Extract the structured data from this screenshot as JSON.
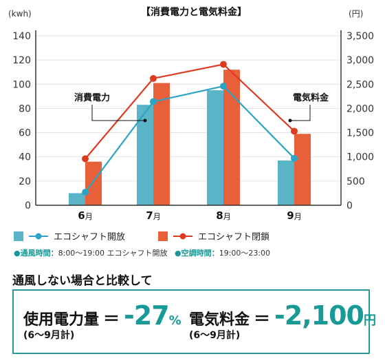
{
  "chart_data": {
    "type": "bar+line",
    "title": "【消費電力と電気料金】",
    "y_left_unit": "(kwh)",
    "y_right_unit": "(円)",
    "ylim_left": [
      0,
      140
    ],
    "ylim_right": [
      0,
      3500
    ],
    "left_ticks": [
      "0",
      "20",
      "40",
      "60",
      "80",
      "100",
      "120",
      "140"
    ],
    "right_ticks": [
      "0",
      "500",
      "1,000",
      "1,500",
      "2,000",
      "2,500",
      "3,000",
      "3,500"
    ],
    "categories": [
      {
        "num": "6",
        "suffix": "月"
      },
      {
        "num": "7",
        "suffix": "月"
      },
      {
        "num": "8",
        "suffix": "月"
      },
      {
        "num": "9",
        "suffix": "月"
      }
    ],
    "bars": [
      {
        "name": "エコシャフト開放",
        "color": "#5ab4c8",
        "values": [
          10,
          83,
          95,
          37
        ]
      },
      {
        "name": "エコシャフト閉鎖",
        "color": "#e8603a",
        "values": [
          36,
          101,
          112,
          59
        ]
      }
    ],
    "lines": [
      {
        "name": "エコシャフト開放",
        "color": "#2ba3c4",
        "values": [
          270,
          2140,
          2460,
          970
        ]
      },
      {
        "name": "エコシャフト閉鎖",
        "color": "#de3b22",
        "values": [
          960,
          2620,
          2910,
          1530
        ]
      }
    ],
    "annotations": [
      "消費電力",
      "電気料金"
    ],
    "grid": true
  },
  "info": {
    "a_label": "通風時間",
    "a_text": "：8:00〜19:00 エコシャフト開放",
    "b_label": "空調時間",
    "b_text": "：19:00〜23:00"
  },
  "heading": "通風しない場合と比較して",
  "summary": {
    "power_label": "使用電力量",
    "power_value": "-27",
    "power_unit": "%",
    "power_sub": "(6〜9月計)",
    "cost_label": "電気料金",
    "cost_value": "-2,100",
    "cost_unit": "円",
    "cost_sub": "(6〜9月計)",
    "equals": "＝"
  }
}
